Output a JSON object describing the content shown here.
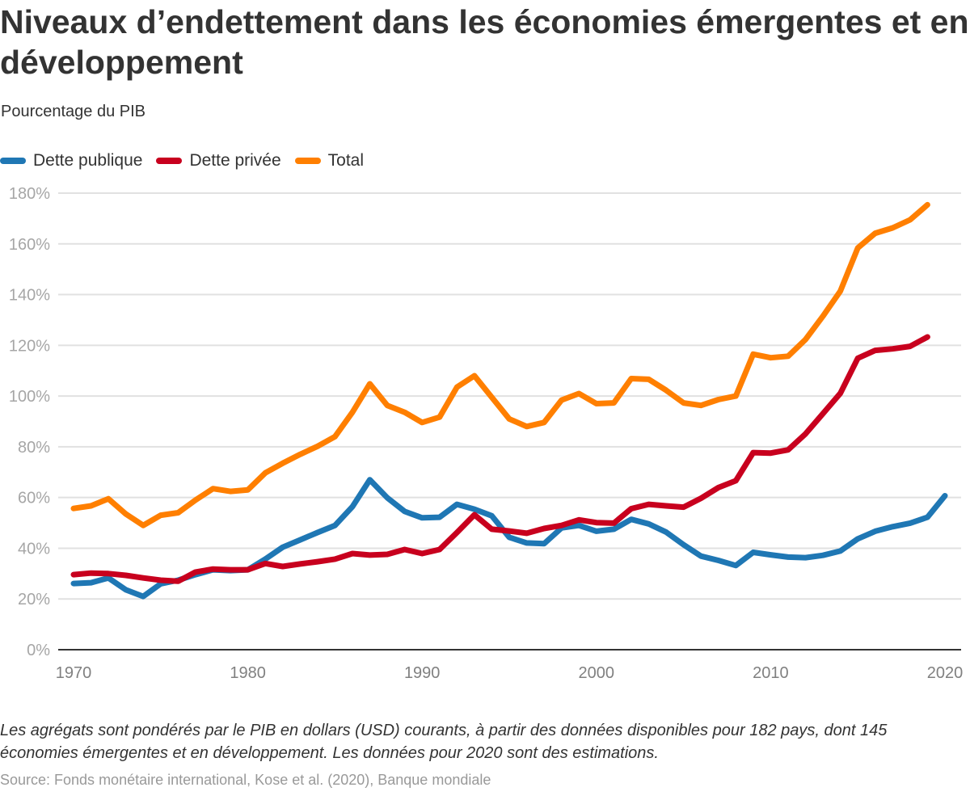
{
  "header": {
    "title": "Niveaux d’endettement dans les économies émergentes et en développement",
    "subtitle": "Pourcentage du PIB"
  },
  "legend": [
    {
      "label": "Dette publique",
      "color": "#1f77b4"
    },
    {
      "label": "Dette privée",
      "color": "#c8001e"
    },
    {
      "label": "Total",
      "color": "#ff7f00"
    }
  ],
  "footer": {
    "note": "Les agrégats sont pondérés par le PIB en dollars (USD) courants, à partir des données disponibles pour 182 pays, dont 145 économies émergentes et en développement. Les données pour 2020 sont des estimations.",
    "source": "Source: Fonds monétaire international, Kose et al. (2020), Banque mondiale"
  },
  "chart_data": {
    "type": "line",
    "title": "Niveaux d’endettement dans les économies émergentes et en développement",
    "subtitle": "Pourcentage du PIB",
    "xlabel": "",
    "ylabel": "Pourcentage du PIB",
    "x": [
      1970,
      1971,
      1972,
      1973,
      1974,
      1975,
      1976,
      1977,
      1978,
      1979,
      1980,
      1981,
      1982,
      1983,
      1984,
      1985,
      1986,
      1987,
      1988,
      1989,
      1990,
      1991,
      1992,
      1993,
      1994,
      1995,
      1996,
      1997,
      1998,
      1999,
      2000,
      2001,
      2002,
      2003,
      2004,
      2005,
      2006,
      2007,
      2008,
      2009,
      2010,
      2011,
      2012,
      2013,
      2014,
      2015,
      2016,
      2017,
      2018,
      2019,
      2020
    ],
    "xlim": [
      1970,
      2020
    ],
    "ylim": [
      0,
      180
    ],
    "x_ticks": [
      "1970",
      "1980",
      "1990",
      "2000",
      "2010",
      "2020"
    ],
    "x_tick_values": [
      1970,
      1980,
      1990,
      2000,
      2010,
      2020
    ],
    "y_ticks": [
      "0%",
      "20%",
      "40%",
      "60%",
      "80%",
      "100%",
      "120%",
      "140%",
      "160%",
      "180%"
    ],
    "y_tick_values": [
      0,
      20,
      40,
      60,
      80,
      100,
      120,
      140,
      160,
      180
    ],
    "grid": true,
    "legend_position": "top-left",
    "series": [
      {
        "name": "Dette publique",
        "color": "#1f77b4",
        "values": [
          26.1,
          26.4,
          28.3,
          23.6,
          21.0,
          26.0,
          27.4,
          29.6,
          31.5,
          31.2,
          31.5,
          35.7,
          40.4,
          43.3,
          46.2,
          49.0,
          56.4,
          67.0,
          59.9,
          54.5,
          52.0,
          52.2,
          57.3,
          55.4,
          52.8,
          44.3,
          42.1,
          41.8,
          48.0,
          49.0,
          46.7,
          47.5,
          51.4,
          49.6,
          46.4,
          41.4,
          36.9,
          35.2,
          33.2,
          38.4,
          37.4,
          36.5,
          36.3,
          37.2,
          38.9,
          43.7,
          46.7,
          48.5,
          49.9,
          52.2,
          60.7
        ]
      },
      {
        "name": "Dette privée",
        "color": "#c8001e",
        "values": [
          29.6,
          30.2,
          30.0,
          29.3,
          28.3,
          27.4,
          27.0,
          30.6,
          31.8,
          31.5,
          31.5,
          34.0,
          32.8,
          33.8,
          34.7,
          35.7,
          37.9,
          37.3,
          37.6,
          39.5,
          37.9,
          39.5,
          46.2,
          53.2,
          47.5,
          46.8,
          45.9,
          47.8,
          49.0,
          51.2,
          50.1,
          49.9,
          55.6,
          57.3,
          56.7,
          56.2,
          59.7,
          63.9,
          66.6,
          77.7,
          77.5,
          78.8,
          85.1,
          93.1,
          101.1,
          114.9,
          118.0,
          118.6,
          119.6,
          123.3,
          null
        ]
      },
      {
        "name": "Total",
        "color": "#ff7f00",
        "values": [
          55.7,
          56.7,
          59.5,
          53.5,
          49.0,
          53.0,
          54.0,
          59.0,
          63.5,
          62.4,
          63.0,
          69.7,
          73.5,
          77.0,
          80.2,
          84.0,
          93.6,
          104.8,
          96.3,
          93.6,
          89.6,
          91.7,
          103.5,
          108.0,
          99.5,
          91.0,
          88.0,
          89.6,
          98.4,
          101.0,
          97.0,
          97.3,
          106.9,
          106.6,
          102.3,
          97.3,
          96.3,
          98.6,
          100.0,
          116.5,
          115.1,
          115.7,
          122.3,
          131.5,
          141.4,
          158.4,
          164.2,
          166.3,
          169.5,
          175.4,
          null
        ]
      }
    ]
  }
}
